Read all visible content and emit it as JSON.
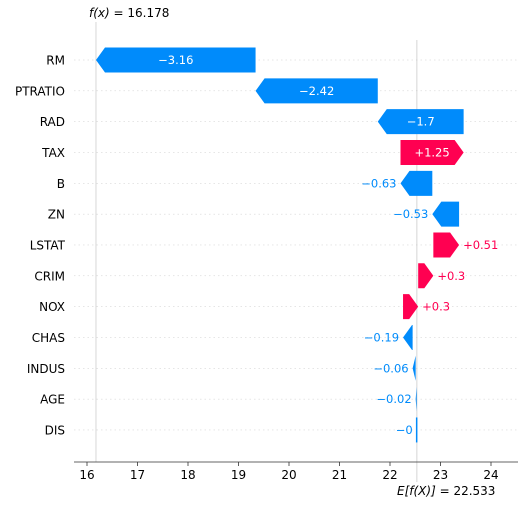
{
  "chart_data": {
    "type": "waterfall",
    "title": "",
    "xlabel": "",
    "ylabel": "",
    "xlim": [
      15.75,
      24.6
    ],
    "xticks": [
      16,
      17,
      18,
      19,
      20,
      21,
      22,
      23,
      24
    ],
    "final_value_label": "f(x)",
    "final_value": 16.178,
    "base_value_label": "E[f(X)]",
    "base_value": 22.533,
    "colors": {
      "positive": "#ff0051",
      "negative": "#008bfb"
    },
    "features": [
      {
        "name": "RM",
        "value": -3.16,
        "label": "−3.16"
      },
      {
        "name": "PTRATIO",
        "value": -2.42,
        "label": "−2.42"
      },
      {
        "name": "RAD",
        "value": -1.7,
        "label": "−1.7"
      },
      {
        "name": "TAX",
        "value": 1.25,
        "label": "+1.25"
      },
      {
        "name": "B",
        "value": -0.63,
        "label": "−0.63"
      },
      {
        "name": "ZN",
        "value": -0.53,
        "label": "−0.53"
      },
      {
        "name": "LSTAT",
        "value": 0.51,
        "label": "+0.51"
      },
      {
        "name": "CRIM",
        "value": 0.3,
        "label": "+0.3"
      },
      {
        "name": "NOX",
        "value": 0.3,
        "label": "+0.3"
      },
      {
        "name": "CHAS",
        "value": -0.19,
        "label": "−0.19"
      },
      {
        "name": "INDUS",
        "value": -0.06,
        "label": "−0.06"
      },
      {
        "name": "AGE",
        "value": -0.02,
        "label": "−0.02"
      },
      {
        "name": "DIS",
        "value": 0.0,
        "label": "−0"
      }
    ]
  }
}
